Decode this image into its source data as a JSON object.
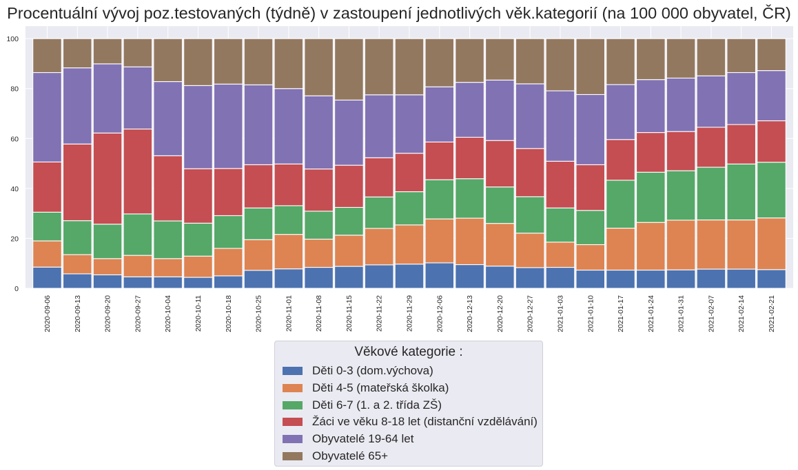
{
  "chart_data": {
    "type": "bar",
    "stacked": true,
    "title": "Procentuální vývoj poz.testovaných (týdně) v zastoupení jednotlivých věk.kategorií (na 100 000 obyvatel, ČR)",
    "xlabel": "",
    "ylabel": "",
    "ylim": [
      0,
      105
    ],
    "yticks": [
      0,
      20,
      40,
      60,
      80,
      100
    ],
    "grid": true,
    "legend_placement": "bottom-center",
    "legend_title": "Věkové kategorie :",
    "categories": [
      "2020-09-06",
      "2020-09-13",
      "2020-09-20",
      "2020-09-27",
      "2020-10-04",
      "2020-10-11",
      "2020-10-18",
      "2020-10-25",
      "2020-11-01",
      "2020-11-08",
      "2020-11-15",
      "2020-11-22",
      "2020-11-29",
      "2020-12-06",
      "2020-12-13",
      "2020-12-20",
      "2020-12-27",
      "2021-01-03",
      "2021-01-10",
      "2021-01-17",
      "2021-01-24",
      "2021-01-31",
      "2021-02-07",
      "2021-02-14",
      "2021-02-21"
    ],
    "series": [
      {
        "name": "Děti 0-3 (dom.výchova)",
        "color": "#4c72b0",
        "values": [
          8.5,
          5.8,
          5.4,
          4.6,
          4.6,
          4.4,
          5.0,
          7.2,
          7.8,
          8.4,
          8.8,
          9.4,
          9.7,
          10.2,
          9.5,
          8.9,
          8.3,
          8.4,
          7.3,
          7.3,
          7.3,
          7.4,
          7.7,
          7.7,
          7.5
        ]
      },
      {
        "name": "Děti 4-5 (mateřská školka)",
        "color": "#dd8452",
        "values": [
          10.5,
          7.7,
          6.5,
          8.6,
          7.3,
          8.5,
          11.0,
          12.3,
          13.8,
          11.3,
          12.5,
          14.6,
          15.7,
          17.6,
          18.6,
          17.1,
          13.8,
          10.1,
          10.2,
          16.8,
          19.1,
          19.9,
          19.7,
          19.7,
          20.7
        ]
      },
      {
        "name": "Děti 6-7 (1. a 2. třída ZŠ)",
        "color": "#55a868",
        "values": [
          11.5,
          13.6,
          13.8,
          16.6,
          15.1,
          13.2,
          13.1,
          12.7,
          11.5,
          11.2,
          11.1,
          12.6,
          13.3,
          15.7,
          15.8,
          14.6,
          14.6,
          13.7,
          13.7,
          19.2,
          20.1,
          19.8,
          21.1,
          22.4,
          22.3
        ]
      },
      {
        "name": "Žáci ve věku 8-18 let (distanční vzdělávání)",
        "color": "#c44e52",
        "values": [
          20.1,
          30.7,
          36.5,
          34.0,
          26.1,
          21.8,
          18.9,
          17.3,
          16.7,
          16.9,
          16.9,
          15.7,
          15.4,
          15.1,
          16.6,
          18.6,
          19.3,
          18.7,
          18.3,
          16.3,
          15.9,
          15.7,
          16.0,
          15.8,
          16.6
        ]
      },
      {
        "name": "Obyvatelé 19-64 let",
        "color": "#8172b3",
        "values": [
          35.8,
          30.5,
          27.7,
          24.9,
          29.7,
          33.3,
          33.8,
          32.0,
          30.2,
          29.3,
          26.1,
          25.2,
          23.4,
          22.1,
          22.0,
          24.2,
          25.9,
          28.2,
          28.1,
          22.0,
          21.2,
          21.4,
          20.6,
          20.8,
          20.1
        ]
      },
      {
        "name": "Obyvatelé 65+",
        "color": "#937860",
        "values": [
          13.6,
          11.7,
          10.1,
          11.3,
          17.2,
          18.8,
          18.2,
          18.5,
          20.0,
          22.9,
          24.6,
          22.5,
          22.5,
          19.3,
          17.5,
          16.6,
          18.1,
          20.9,
          22.4,
          18.4,
          16.4,
          15.8,
          14.9,
          13.6,
          12.8
        ]
      }
    ]
  }
}
